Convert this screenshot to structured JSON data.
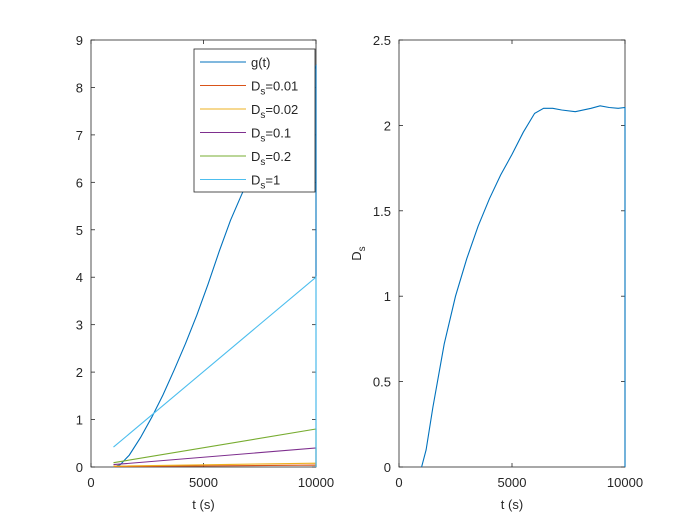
{
  "chart_data": [
    {
      "type": "line",
      "xlabel": "t (s)",
      "ylabel": "",
      "xlim": [
        0,
        10000
      ],
      "ylim": [
        0,
        9
      ],
      "xticks": [
        0,
        5000,
        10000
      ],
      "yticks": [
        0,
        1,
        2,
        3,
        4,
        5,
        6,
        7,
        8,
        9
      ],
      "grid": false,
      "legend_position": "top-right",
      "series": [
        {
          "name": "g(t)",
          "color": "#0072BD",
          "x": [
            1000,
            1300,
            1700,
            2200,
            2700,
            3200,
            3700,
            4200,
            4700,
            5200,
            5700,
            6200,
            6700,
            7000,
            8000,
            9000,
            10000,
            10000
          ],
          "y": [
            0.0,
            0.05,
            0.25,
            0.62,
            1.05,
            1.52,
            2.05,
            2.6,
            3.2,
            3.85,
            4.55,
            5.2,
            5.75,
            6.05,
            6.8,
            7.6,
            8.45,
            0.0
          ]
        },
        {
          "name": "D",
          "subscript": "s",
          "suffix": "=0.01",
          "color": "#D95319",
          "x": [
            1000,
            10000,
            10000
          ],
          "y": [
            0.01,
            0.04,
            0.0
          ]
        },
        {
          "name": "D",
          "subscript": "s",
          "suffix": "=0.02",
          "color": "#EDB120",
          "x": [
            1000,
            10000,
            10000
          ],
          "y": [
            0.02,
            0.08,
            0.0
          ]
        },
        {
          "name": "D",
          "subscript": "s",
          "suffix": "=0.1",
          "color": "#7E2F8E",
          "x": [
            1000,
            10000,
            10000
          ],
          "y": [
            0.05,
            0.4,
            0.0
          ]
        },
        {
          "name": "D",
          "subscript": "s",
          "suffix": "=0.2",
          "color": "#77AC30",
          "x": [
            1000,
            10000,
            10000
          ],
          "y": [
            0.09,
            0.8,
            0.0
          ]
        },
        {
          "name": "D",
          "subscript": "s",
          "suffix": "=1",
          "color": "#4DBEEE",
          "x": [
            1000,
            10000,
            10000
          ],
          "y": [
            0.42,
            4.0,
            0.0
          ]
        }
      ]
    },
    {
      "type": "line",
      "xlabel": "t (s)",
      "ylabel": "D",
      "ylabel_subscript": "s",
      "xlim": [
        0,
        10000
      ],
      "ylim": [
        0,
        2.5
      ],
      "xticks": [
        0,
        5000,
        10000
      ],
      "yticks": [
        0,
        0.5,
        1,
        1.5,
        2,
        2.5
      ],
      "grid": false,
      "series": [
        {
          "color": "#0072BD",
          "x": [
            1000,
            1200,
            1500,
            2000,
            2500,
            3000,
            3500,
            4000,
            4500,
            5000,
            5500,
            6000,
            6400,
            6800,
            7200,
            7800,
            8500,
            8900,
            9300,
            9700,
            10000,
            10000,
            10000
          ],
          "y": [
            0.0,
            0.1,
            0.35,
            0.72,
            1.0,
            1.22,
            1.41,
            1.57,
            1.71,
            1.83,
            1.96,
            2.07,
            2.1,
            2.1,
            2.09,
            2.08,
            2.1,
            2.115,
            2.105,
            2.1,
            2.105,
            1.05,
            0.0
          ]
        }
      ]
    }
  ]
}
